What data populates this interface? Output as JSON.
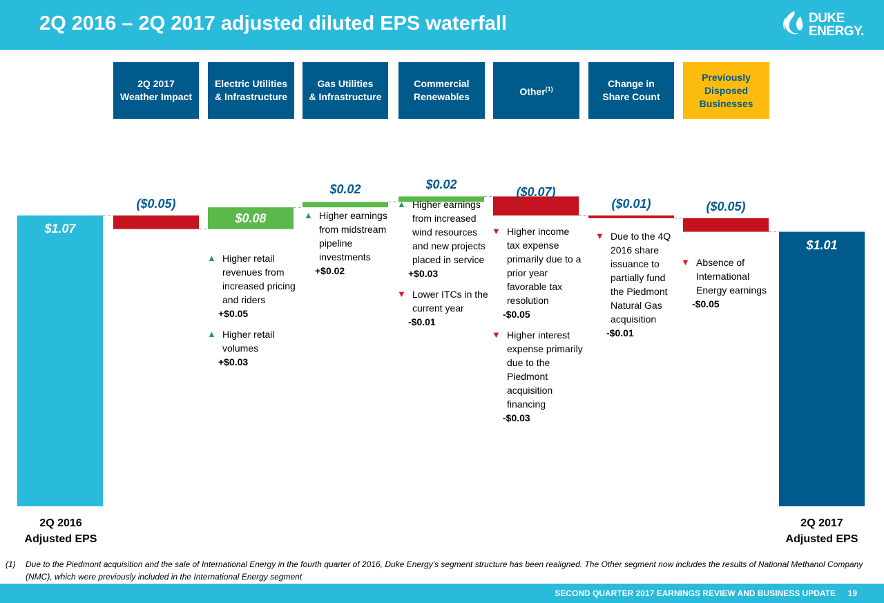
{
  "header": {
    "title": "2Q 2016 – 2Q 2017 adjusted diluted EPS waterfall",
    "logo_line1": "DUKE",
    "logo_line2": "ENERGY."
  },
  "colors": {
    "header": "#2abadb",
    "start_bar": "#2abadb",
    "end_bar": "#005a8c",
    "increase": "#5bb84a",
    "decrease": "#c4121e",
    "segment_box": "#005a8c",
    "highlight_box": "#fdbb0e"
  },
  "segments": [
    {
      "line1": "2Q 2017",
      "line2": "Weather Impact"
    },
    {
      "line1": "Electric Utilities",
      "line2": "& Infrastructure"
    },
    {
      "line1": "Gas Utilities",
      "line2": "& Infrastructure"
    },
    {
      "line1": "Commercial",
      "line2": "Renewables"
    },
    {
      "line1": "Other",
      "sup": "(1)"
    },
    {
      "line1": "Change in",
      "line2": "Share Count"
    },
    {
      "line1": "Previously",
      "line2": "Disposed",
      "line3": "Businesses"
    }
  ],
  "chart_data": {
    "type": "bar",
    "subtype": "waterfall",
    "categories": [
      "2Q 2016 Adjusted EPS",
      "2Q 2017 Weather Impact",
      "Electric Utilities & Infrastructure",
      "Gas Utilities & Infrastructure",
      "Commercial Renewables",
      "Other",
      "Change in Share Count",
      "Previously Disposed Businesses",
      "2Q 2017 Adjusted EPS"
    ],
    "values": [
      1.07,
      -0.05,
      0.08,
      0.02,
      0.02,
      -0.07,
      -0.01,
      -0.05,
      1.01
    ],
    "labels": [
      "$1.07",
      "($0.05)",
      "$0.08",
      "$0.02",
      "$0.02",
      "($0.07)",
      "($0.01)",
      "($0.05)",
      "$1.01"
    ],
    "start_label": {
      "line1": "2Q 2016",
      "line2": "Adjusted EPS"
    },
    "end_label": {
      "line1": "2Q 2017",
      "line2": "Adjusted EPS"
    }
  },
  "notes": {
    "electric": [
      {
        "dir": "up",
        "lines": [
          "Higher retail",
          "revenues from",
          "increased pricing",
          "and riders"
        ],
        "amount": "+$0.05"
      },
      {
        "dir": "up",
        "lines": [
          "Higher retail",
          "volumes"
        ],
        "amount": "+$0.03"
      }
    ],
    "gas": [
      {
        "dir": "up",
        "lines": [
          "Higher earnings",
          "from midstream",
          "pipeline",
          "investments"
        ],
        "amount": "+$0.02"
      }
    ],
    "renewables": [
      {
        "dir": "up",
        "lines": [
          "Higher earnings",
          "from increased",
          "wind resources",
          "and new projects",
          "placed in service"
        ],
        "amount": "+$0.03"
      },
      {
        "dir": "down",
        "lines": [
          "Lower ITCs in the",
          "current year"
        ],
        "amount": "-$0.01"
      }
    ],
    "other": [
      {
        "dir": "down",
        "lines": [
          "Higher income",
          "tax expense",
          "primarily due to a",
          "prior year",
          "favorable tax",
          "resolution"
        ],
        "amount": "-$0.05"
      },
      {
        "dir": "down",
        "lines": [
          "Higher interest",
          "expense primarily",
          "due to the",
          "Piedmont",
          "acquisition",
          "financing"
        ],
        "amount": "-$0.03"
      }
    ],
    "share": [
      {
        "dir": "down",
        "lines": [
          "Due to the 4Q",
          "2016 share",
          "issuance to",
          "partially fund",
          "the Piedmont",
          "Natural Gas",
          "acquisition"
        ],
        "amount": "-$0.01"
      }
    ],
    "disposed": [
      {
        "dir": "down",
        "lines": [
          "Absence of",
          "International",
          "Energy earnings"
        ],
        "amount": "-$0.05"
      }
    ]
  },
  "footnote": {
    "num": "(1)",
    "line1": "Due to the Piedmont acquisition and the sale of International Energy in the fourth quarter of 2016, Duke Energy's segment structure has been realigned.  The Other segment now includes the results of National Methanol Company",
    "line2": "(NMC), which were previously included in the International Energy segment"
  },
  "footer": {
    "text": "SECOND QUARTER 2017 EARNINGS REVIEW AND BUSINESS UPDATE",
    "page": "19"
  }
}
